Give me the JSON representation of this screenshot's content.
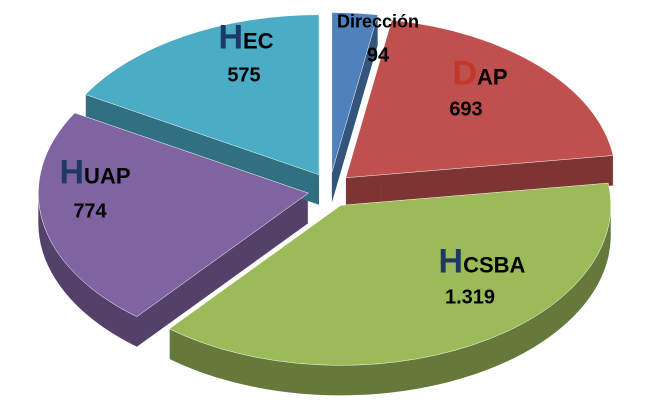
{
  "chart_data": {
    "type": "pie",
    "categories": [
      "Dirección",
      "DAP",
      "HCSBA",
      "HUAP",
      "HEC"
    ],
    "values": [
      94,
      693,
      1319,
      774,
      575
    ],
    "value_labels": [
      "94",
      "693",
      "1.319",
      "774",
      "575"
    ],
    "colors": [
      "#4f81bd",
      "#c0504d",
      "#9bbb59",
      "#8064a2",
      "#4bacc6"
    ]
  }
}
